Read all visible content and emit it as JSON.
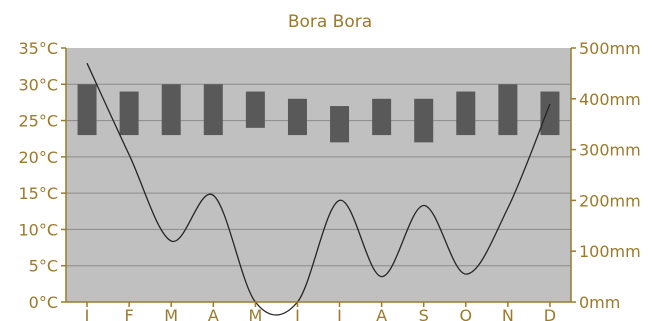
{
  "chart_data": {
    "type": "climate",
    "title": "Bora Bora",
    "categories": [
      "J",
      "F",
      "M",
      "A",
      "M",
      "J",
      "J",
      "A",
      "S",
      "O",
      "N",
      "D"
    ],
    "left_axis": {
      "unit": "°C",
      "ylim": [
        0,
        35
      ],
      "ticks": [
        "0°C",
        "5°C",
        "10°C",
        "15°C",
        "20°C",
        "25°C",
        "30°C",
        "35°C"
      ]
    },
    "right_axis": {
      "unit": "mm",
      "ylim": [
        0,
        500
      ],
      "ticks": [
        "0mm",
        "100mm",
        "200mm",
        "300mm",
        "400mm",
        "500mm"
      ]
    },
    "temperature_range": {
      "series_type": "floating-bar",
      "axis": "left",
      "low": [
        23,
        23,
        23,
        23,
        24,
        23,
        22,
        23,
        22,
        23,
        23,
        23
      ],
      "high": [
        30,
        29,
        30,
        30,
        29,
        28,
        27,
        28,
        28,
        29,
        30,
        29
      ]
    },
    "precipitation": {
      "series_type": "line",
      "axis": "right",
      "values": [
        470,
        290,
        120,
        210,
        0,
        0,
        200,
        50,
        190,
        55,
        185,
        390
      ]
    },
    "grid": true,
    "colors": {
      "plot_background": "#c0c0c0",
      "bar": "#595959",
      "line": "#262626",
      "gridline": "#8a8a8a",
      "axis": "#9c7a2c",
      "text": "#9c7a2c"
    }
  }
}
